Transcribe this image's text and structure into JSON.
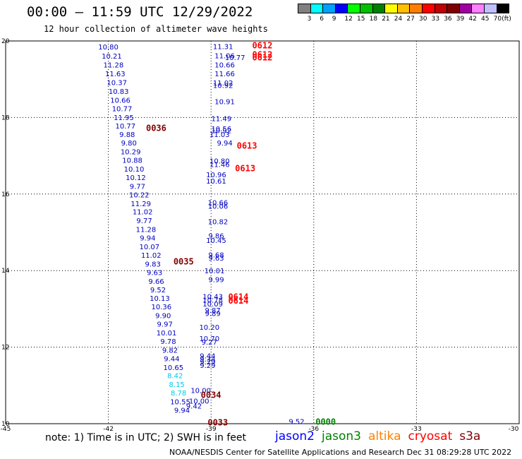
{
  "header": {
    "title": "00:00 – 11:59 UTC 12/29/2022",
    "subtitle": "12 hour collection of altimeter wave heights"
  },
  "color_scale": {
    "colors": [
      "#808080",
      "#00ffff",
      "#00a0ff",
      "#0000ff",
      "#00ff00",
      "#00c000",
      "#008000",
      "#ffff00",
      "#ffc000",
      "#ff8000",
      "#ff0000",
      "#c00000",
      "#800000",
      "#a000a0",
      "#ff80ff",
      "#c0c0ff",
      "#000000"
    ],
    "labels": [
      "3",
      "6",
      "9",
      "12",
      "15",
      "18",
      "21",
      "24",
      "27",
      "30",
      "33",
      "36",
      "39",
      "42",
      "45",
      "70",
      "(ft)"
    ]
  },
  "axes": {
    "x_ticks": [
      "-45",
      "-42",
      "-39",
      "-36",
      "-33",
      "-30"
    ],
    "y_ticks": [
      "20",
      "18",
      "16",
      "14",
      "12",
      "10"
    ]
  },
  "chart_data": {
    "type": "scatter",
    "xlim": [
      -45,
      -30
    ],
    "ylim": [
      10,
      20
    ],
    "grid": true,
    "points": [
      {
        "lon": -42.0,
        "lat": 19.85,
        "v": "10.80",
        "c": "#0000c0"
      },
      {
        "lon": -41.9,
        "lat": 19.61,
        "v": "10.21",
        "c": "#0000c0"
      },
      {
        "lon": -41.85,
        "lat": 19.38,
        "v": "11.28",
        "c": "#0000c0"
      },
      {
        "lon": -41.8,
        "lat": 19.15,
        "v": "11.63",
        "c": "#0000c0"
      },
      {
        "lon": -41.75,
        "lat": 18.92,
        "v": "10.37",
        "c": "#0000c0"
      },
      {
        "lon": -41.7,
        "lat": 18.69,
        "v": "10.83",
        "c": "#0000c0"
      },
      {
        "lon": -41.65,
        "lat": 18.46,
        "v": "10.66",
        "c": "#0000c0"
      },
      {
        "lon": -41.6,
        "lat": 18.24,
        "v": "10.77",
        "c": "#0000c0"
      },
      {
        "lon": -41.55,
        "lat": 18.01,
        "v": "11.95",
        "c": "#0000c0"
      },
      {
        "lon": -41.5,
        "lat": 17.79,
        "v": "10.77",
        "c": "#0000c0"
      },
      {
        "lon": -41.45,
        "lat": 17.56,
        "v": "9.88",
        "c": "#0000c0"
      },
      {
        "lon": -41.4,
        "lat": 17.34,
        "v": "9.80",
        "c": "#0000c0"
      },
      {
        "lon": -41.35,
        "lat": 17.11,
        "v": "10.29",
        "c": "#0000c0"
      },
      {
        "lon": -41.3,
        "lat": 16.89,
        "v": "10.88",
        "c": "#0000c0"
      },
      {
        "lon": -41.25,
        "lat": 16.66,
        "v": "10.10",
        "c": "#0000c0"
      },
      {
        "lon": -41.2,
        "lat": 16.44,
        "v": "10.12",
        "c": "#0000c0"
      },
      {
        "lon": -41.15,
        "lat": 16.21,
        "v": "9.77",
        "c": "#0000c0"
      },
      {
        "lon": -41.1,
        "lat": 15.99,
        "v": "10.22",
        "c": "#0000c0"
      },
      {
        "lon": -41.05,
        "lat": 15.76,
        "v": "11.29",
        "c": "#0000c0"
      },
      {
        "lon": -41.0,
        "lat": 15.54,
        "v": "11.02",
        "c": "#0000c0"
      },
      {
        "lon": -40.95,
        "lat": 15.31,
        "v": "9.77",
        "c": "#0000c0"
      },
      {
        "lon": -40.9,
        "lat": 15.08,
        "v": "11.28",
        "c": "#0000c0"
      },
      {
        "lon": -40.85,
        "lat": 14.86,
        "v": "9.94",
        "c": "#0000c0"
      },
      {
        "lon": -40.8,
        "lat": 14.63,
        "v": "10.07",
        "c": "#0000c0"
      },
      {
        "lon": -40.75,
        "lat": 14.41,
        "v": "11.02",
        "c": "#0000c0"
      },
      {
        "lon": -40.7,
        "lat": 14.18,
        "v": "9.83",
        "c": "#0000c0"
      },
      {
        "lon": -40.65,
        "lat": 13.96,
        "v": "9.63",
        "c": "#0000c0"
      },
      {
        "lon": -40.6,
        "lat": 13.73,
        "v": "9.66",
        "c": "#0000c0"
      },
      {
        "lon": -40.55,
        "lat": 13.51,
        "v": "9.52",
        "c": "#0000c0"
      },
      {
        "lon": -40.5,
        "lat": 13.28,
        "v": "10.13",
        "c": "#0000c0"
      },
      {
        "lon": -40.45,
        "lat": 13.06,
        "v": "10.36",
        "c": "#0000c0"
      },
      {
        "lon": -40.4,
        "lat": 12.83,
        "v": "9.90",
        "c": "#0000c0"
      },
      {
        "lon": -40.35,
        "lat": 12.61,
        "v": "9.97",
        "c": "#0000c0"
      },
      {
        "lon": -40.3,
        "lat": 12.38,
        "v": "10.01",
        "c": "#0000c0"
      },
      {
        "lon": -40.25,
        "lat": 12.16,
        "v": "9.78",
        "c": "#0000c0"
      },
      {
        "lon": -40.2,
        "lat": 11.93,
        "v": "9.82",
        "c": "#0000c0"
      },
      {
        "lon": -40.15,
        "lat": 11.71,
        "v": "9.44",
        "c": "#0000c0"
      },
      {
        "lon": -40.1,
        "lat": 11.48,
        "v": "10.65",
        "c": "#0000c0"
      },
      {
        "lon": -40.05,
        "lat": 11.26,
        "v": "8.42",
        "c": "#00c8e8"
      },
      {
        "lon": -40.0,
        "lat": 11.03,
        "v": "8.15",
        "c": "#00c8e8"
      },
      {
        "lon": -39.95,
        "lat": 10.81,
        "v": "8.78",
        "c": "#00c8e8"
      },
      {
        "lon": -39.9,
        "lat": 10.58,
        "v": "10.55",
        "c": "#0000c0"
      },
      {
        "lon": -39.85,
        "lat": 10.36,
        "v": "9.94",
        "c": "#0000c0"
      },
      {
        "lon": -38.65,
        "lat": 19.86,
        "v": "11.31",
        "c": "#0000c0"
      },
      {
        "lon": -38.6,
        "lat": 19.62,
        "v": "11.06",
        "c": "#0000c0"
      },
      {
        "lon": -38.3,
        "lat": 19.58,
        "v": "10.77",
        "c": "#0000c0"
      },
      {
        "lon": -38.6,
        "lat": 19.38,
        "v": "10.66",
        "c": "#0000c0"
      },
      {
        "lon": -38.6,
        "lat": 19.15,
        "v": "11.66",
        "c": "#0000c0"
      },
      {
        "lon": -38.65,
        "lat": 18.91,
        "v": "11.02",
        "c": "#0000c0"
      },
      {
        "lon": -38.65,
        "lat": 18.85,
        "v": "10.92",
        "c": "#0000c0"
      },
      {
        "lon": -38.6,
        "lat": 18.42,
        "v": "10.91",
        "c": "#0000c0"
      },
      {
        "lon": -38.7,
        "lat": 17.98,
        "v": "11.49",
        "c": "#0000c0"
      },
      {
        "lon": -38.7,
        "lat": 17.71,
        "v": "10.56",
        "c": "#0000c0"
      },
      {
        "lon": -38.7,
        "lat": 17.67,
        "v": "10.92",
        "c": "#0000c0"
      },
      {
        "lon": -38.75,
        "lat": 17.56,
        "v": "11.03",
        "c": "#0000c0"
      },
      {
        "lon": -38.6,
        "lat": 17.34,
        "v": "9.94",
        "c": "#0000c0"
      },
      {
        "lon": -38.75,
        "lat": 16.87,
        "v": "10.80",
        "c": "#0000c0"
      },
      {
        "lon": -38.75,
        "lat": 16.78,
        "v": "11.46",
        "c": "#0000c0"
      },
      {
        "lon": -38.85,
        "lat": 16.51,
        "v": "10.96",
        "c": "#0000c0"
      },
      {
        "lon": -38.85,
        "lat": 16.35,
        "v": "10.61",
        "c": "#0000c0"
      },
      {
        "lon": -38.8,
        "lat": 15.78,
        "v": "10.66",
        "c": "#0000c0"
      },
      {
        "lon": -38.8,
        "lat": 15.69,
        "v": "10.06",
        "c": "#0000c0"
      },
      {
        "lon": -38.8,
        "lat": 15.29,
        "v": "10.82",
        "c": "#0000c0"
      },
      {
        "lon": -38.85,
        "lat": 14.92,
        "v": "9.86",
        "c": "#0000c0"
      },
      {
        "lon": -38.85,
        "lat": 14.8,
        "v": "10.45",
        "c": "#0000c0"
      },
      {
        "lon": -38.85,
        "lat": 14.42,
        "v": "9.68",
        "c": "#0000c0"
      },
      {
        "lon": -38.85,
        "lat": 14.34,
        "v": "9.63",
        "c": "#0000c0"
      },
      {
        "lon": -38.9,
        "lat": 14.0,
        "v": "10.01",
        "c": "#0000c0"
      },
      {
        "lon": -38.85,
        "lat": 13.77,
        "v": "9.99",
        "c": "#0000c0"
      },
      {
        "lon": -38.95,
        "lat": 13.33,
        "v": "10.43",
        "c": "#0000c0"
      },
      {
        "lon": -38.95,
        "lat": 13.24,
        "v": "10.78",
        "c": "#0000c0"
      },
      {
        "lon": -38.95,
        "lat": 13.14,
        "v": "10.09",
        "c": "#0000c0"
      },
      {
        "lon": -38.95,
        "lat": 12.97,
        "v": "9.87",
        "c": "#0000c0"
      },
      {
        "lon": -38.95,
        "lat": 12.89,
        "v": "9.89",
        "c": "#0000c0"
      },
      {
        "lon": -39.05,
        "lat": 12.53,
        "v": "10.20",
        "c": "#0000c0"
      },
      {
        "lon": -39.05,
        "lat": 12.23,
        "v": "10.70",
        "c": "#0000c0"
      },
      {
        "lon": -39.05,
        "lat": 12.14,
        "v": "9.27",
        "c": "#0000c0"
      },
      {
        "lon": -39.1,
        "lat": 11.78,
        "v": "9.44",
        "c": "#0000c0"
      },
      {
        "lon": -39.1,
        "lat": 11.7,
        "v": "9.34",
        "c": "#0000c0"
      },
      {
        "lon": -39.1,
        "lat": 11.62,
        "v": "9.29",
        "c": "#0000c0"
      },
      {
        "lon": -39.1,
        "lat": 11.53,
        "v": "9.29",
        "c": "#0000c0"
      },
      {
        "lon": -39.3,
        "lat": 10.88,
        "v": "10.00",
        "c": "#0000c0"
      },
      {
        "lon": -39.35,
        "lat": 10.6,
        "v": "10.00",
        "c": "#0000c0"
      },
      {
        "lon": -39.5,
        "lat": 10.47,
        "v": "9.42",
        "c": "#0000c0"
      },
      {
        "lon": -36.5,
        "lat": 10.06,
        "v": "9.52",
        "c": "#0000c0"
      }
    ],
    "passes": [
      {
        "lon": -37.8,
        "lat": 19.88,
        "label": "0612",
        "c": "#ff0000"
      },
      {
        "lon": -37.8,
        "lat": 19.64,
        "label": "0612",
        "c": "#ff0000"
      },
      {
        "lon": -37.8,
        "lat": 19.57,
        "label": "0612",
        "c": "#ff0000"
      },
      {
        "lon": -38.25,
        "lat": 17.26,
        "label": "0613",
        "c": "#ff0000"
      },
      {
        "lon": -38.3,
        "lat": 16.67,
        "label": "0613",
        "c": "#ff0000"
      },
      {
        "lon": -38.5,
        "lat": 13.31,
        "label": "0614",
        "c": "#ff0000"
      },
      {
        "lon": -38.5,
        "lat": 13.21,
        "label": "0614",
        "c": "#ff0000"
      },
      {
        "lon": -40.9,
        "lat": 17.72,
        "label": "0036",
        "c": "#800000"
      },
      {
        "lon": -40.1,
        "lat": 14.23,
        "label": "0035",
        "c": "#800000"
      },
      {
        "lon": -39.3,
        "lat": 10.75,
        "label": "0034",
        "c": "#800000"
      },
      {
        "lon": -39.1,
        "lat": 10.03,
        "label": "0033",
        "c": "#800000"
      },
      {
        "lon": -35.95,
        "lat": 10.05,
        "label": "0000",
        "c": "#008000"
      }
    ]
  },
  "footer": {
    "note": "note:  1) Time is in UTC;  2) SWH is in feet",
    "credit": "NOAA/NESDIS Center for Satellite Applications and Research     Dec 31 08:29:28 UTC 2022",
    "satellites": [
      {
        "name": "jason2",
        "color": "#0000ff"
      },
      {
        "name": "jason3",
        "color": "#008000"
      },
      {
        "name": "altika",
        "color": "#ff8000"
      },
      {
        "name": "cryosat",
        "color": "#ff0000"
      },
      {
        "name": "s3a",
        "color": "#800000"
      }
    ]
  }
}
